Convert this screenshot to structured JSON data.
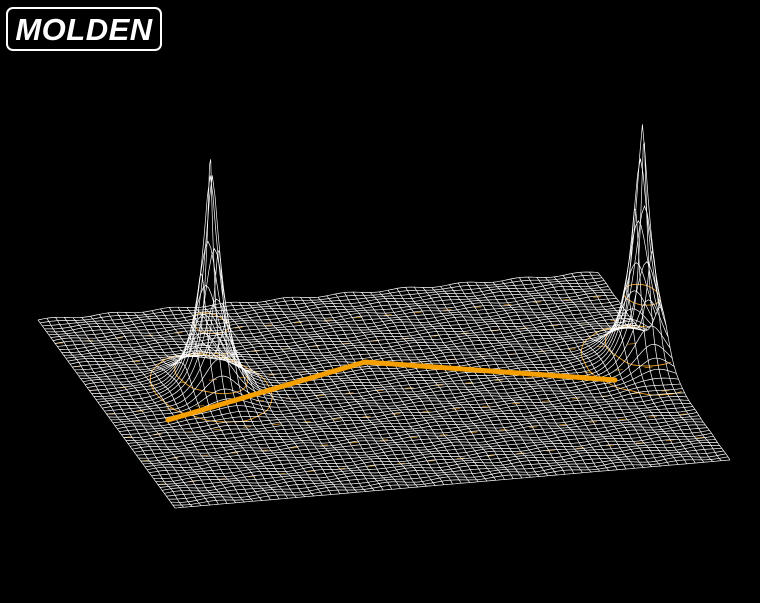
{
  "app": {
    "logo_text": "MOLDEN"
  },
  "plot": {
    "mesh_color": "#ffffff",
    "contour_color": "#f0a020",
    "path_color": "#f5a000",
    "background": "#000000"
  }
}
